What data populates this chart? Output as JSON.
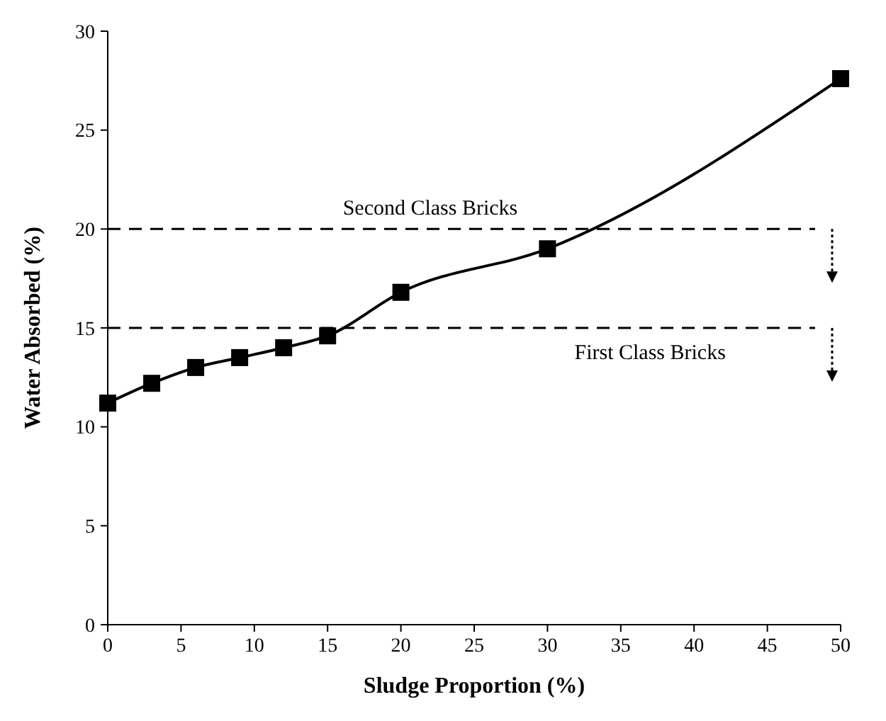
{
  "chart_data": {
    "type": "line",
    "xlabel": "Sludge Proportion (%)",
    "ylabel": "Water Absorbed (%)",
    "x": [
      0,
      3,
      6,
      9,
      12,
      15,
      20,
      30,
      50
    ],
    "series": [
      {
        "color": "#000000",
        "values": [
          11.2,
          12.2,
          13.0,
          13.5,
          14.0,
          14.6,
          16.8,
          19.0,
          27.6
        ]
      }
    ],
    "xlim": [
      0,
      50
    ],
    "xticks": [
      0,
      5,
      10,
      15,
      20,
      25,
      30,
      35,
      40,
      45,
      50
    ],
    "ylim": [
      0,
      30
    ],
    "yticks": [
      0,
      5,
      10,
      15,
      20,
      25,
      30
    ],
    "marker": "square",
    "line_style": "solid",
    "grid": false,
    "ref_lines": [
      {
        "axis": "y",
        "value": 20,
        "label": "Second Class Bricks",
        "line_style": "dashed",
        "color": "#000000"
      },
      {
        "axis": "y",
        "value": 15,
        "label": "First Class Bricks",
        "line_style": "dashed",
        "color": "#000000"
      }
    ]
  }
}
